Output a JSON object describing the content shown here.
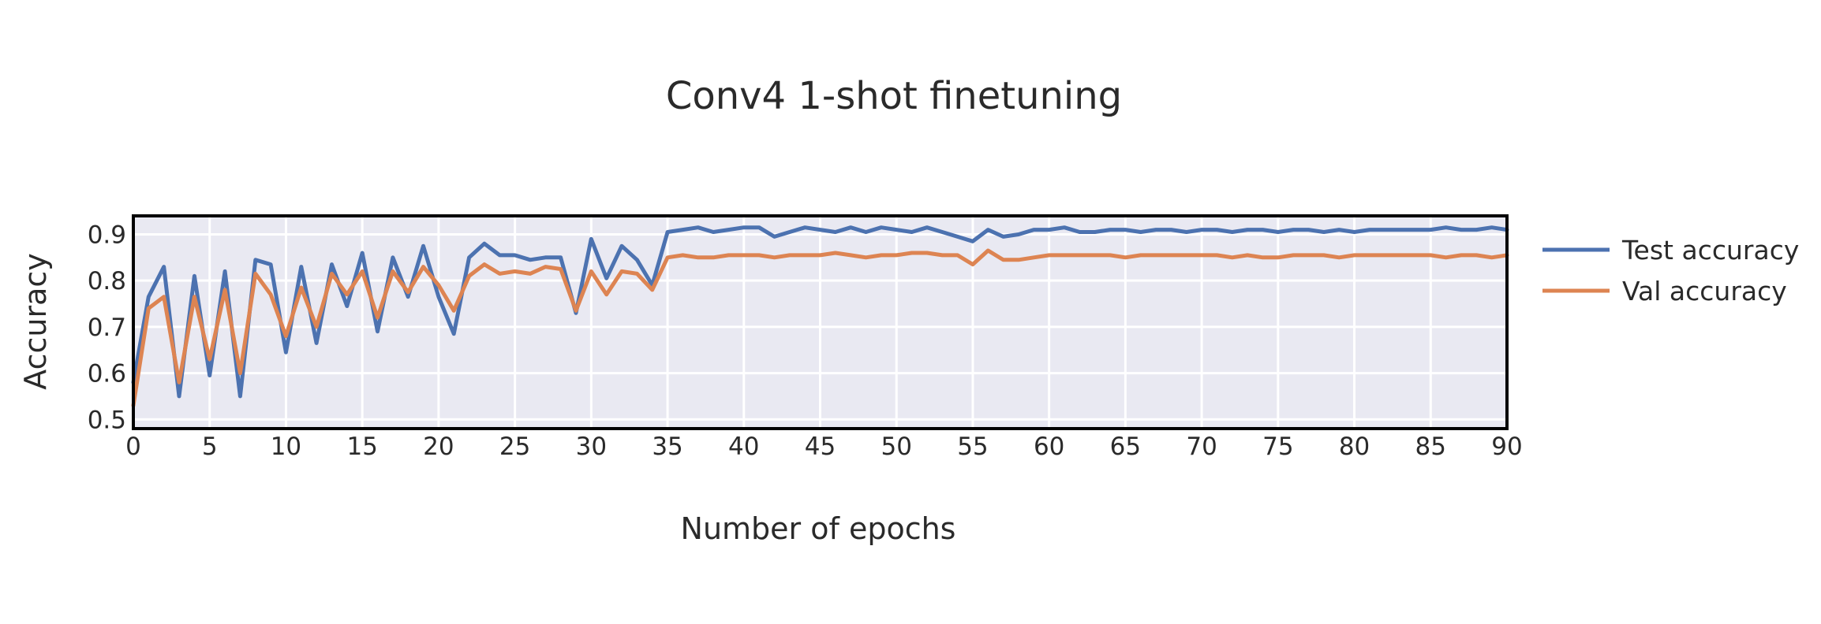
{
  "chart_data": {
    "type": "line",
    "title": "Conv4 1-shot finetuning",
    "xlabel": "Number of epochs",
    "ylabel": "Accuracy",
    "xlim": [
      0,
      90
    ],
    "ylim": [
      0.48,
      0.94
    ],
    "xticks": [
      0,
      5,
      10,
      15,
      20,
      25,
      30,
      35,
      40,
      45,
      50,
      55,
      60,
      65,
      70,
      75,
      80,
      85,
      90
    ],
    "yticks": [
      0.5,
      0.6,
      0.7,
      0.8,
      0.9
    ],
    "grid": true,
    "legend_position": "right",
    "series": [
      {
        "name": "Test accuracy",
        "color": "#4c72b0",
        "x": [
          0,
          1,
          2,
          3,
          4,
          5,
          6,
          7,
          8,
          9,
          10,
          11,
          12,
          13,
          14,
          15,
          16,
          17,
          18,
          19,
          20,
          21,
          22,
          23,
          24,
          25,
          26,
          27,
          28,
          29,
          30,
          31,
          32,
          33,
          34,
          35,
          36,
          37,
          38,
          39,
          40,
          41,
          42,
          43,
          44,
          45,
          46,
          47,
          48,
          49,
          50,
          51,
          52,
          53,
          54,
          55,
          56,
          57,
          58,
          59,
          60,
          61,
          62,
          63,
          64,
          65,
          66,
          67,
          68,
          69,
          70,
          71,
          72,
          73,
          74,
          75,
          76,
          77,
          78,
          79,
          80,
          81,
          82,
          83,
          84,
          85,
          86,
          87,
          88,
          89,
          90
        ],
        "values": [
          0.58,
          0.765,
          0.83,
          0.55,
          0.81,
          0.595,
          0.82,
          0.55,
          0.845,
          0.835,
          0.645,
          0.83,
          0.665,
          0.835,
          0.745,
          0.86,
          0.69,
          0.85,
          0.765,
          0.875,
          0.765,
          0.685,
          0.85,
          0.88,
          0.855,
          0.855,
          0.845,
          0.85,
          0.85,
          0.73,
          0.89,
          0.805,
          0.875,
          0.845,
          0.79,
          0.905,
          0.91,
          0.915,
          0.905,
          0.91,
          0.915,
          0.915,
          0.895,
          0.905,
          0.915,
          0.91,
          0.905,
          0.915,
          0.905,
          0.915,
          0.91,
          0.905,
          0.915,
          0.905,
          0.895,
          0.885,
          0.91,
          0.895,
          0.9,
          0.91,
          0.91,
          0.915,
          0.905,
          0.905,
          0.91,
          0.91,
          0.905,
          0.91,
          0.91,
          0.905,
          0.91,
          0.91,
          0.905,
          0.91,
          0.91,
          0.905,
          0.91,
          0.91,
          0.905,
          0.91,
          0.905,
          0.91,
          0.91,
          0.91,
          0.91,
          0.91,
          0.915,
          0.91,
          0.91,
          0.915,
          0.91
        ]
      },
      {
        "name": "Val accuracy",
        "color": "#dd8452",
        "x": [
          0,
          1,
          2,
          3,
          4,
          5,
          6,
          7,
          8,
          9,
          10,
          11,
          12,
          13,
          14,
          15,
          16,
          17,
          18,
          19,
          20,
          21,
          22,
          23,
          24,
          25,
          26,
          27,
          28,
          29,
          30,
          31,
          32,
          33,
          34,
          35,
          36,
          37,
          38,
          39,
          40,
          41,
          42,
          43,
          44,
          45,
          46,
          47,
          48,
          49,
          50,
          51,
          52,
          53,
          54,
          55,
          56,
          57,
          58,
          59,
          60,
          61,
          62,
          63,
          64,
          65,
          66,
          67,
          68,
          69,
          70,
          71,
          72,
          73,
          74,
          75,
          76,
          77,
          78,
          79,
          80,
          81,
          82,
          83,
          84,
          85,
          86,
          87,
          88,
          89,
          90
        ],
        "values": [
          0.53,
          0.74,
          0.765,
          0.58,
          0.765,
          0.63,
          0.78,
          0.6,
          0.815,
          0.77,
          0.68,
          0.785,
          0.7,
          0.815,
          0.77,
          0.82,
          0.72,
          0.82,
          0.775,
          0.83,
          0.79,
          0.735,
          0.81,
          0.835,
          0.815,
          0.82,
          0.815,
          0.83,
          0.825,
          0.735,
          0.82,
          0.77,
          0.82,
          0.815,
          0.78,
          0.85,
          0.855,
          0.85,
          0.85,
          0.855,
          0.855,
          0.855,
          0.85,
          0.855,
          0.855,
          0.855,
          0.86,
          0.855,
          0.85,
          0.855,
          0.855,
          0.86,
          0.86,
          0.855,
          0.855,
          0.835,
          0.865,
          0.845,
          0.845,
          0.85,
          0.855,
          0.855,
          0.855,
          0.855,
          0.855,
          0.85,
          0.855,
          0.855,
          0.855,
          0.855,
          0.855,
          0.855,
          0.85,
          0.855,
          0.85,
          0.85,
          0.855,
          0.855,
          0.855,
          0.85,
          0.855,
          0.855,
          0.855,
          0.855,
          0.855,
          0.855,
          0.85,
          0.855,
          0.855,
          0.85,
          0.855
        ]
      }
    ]
  }
}
